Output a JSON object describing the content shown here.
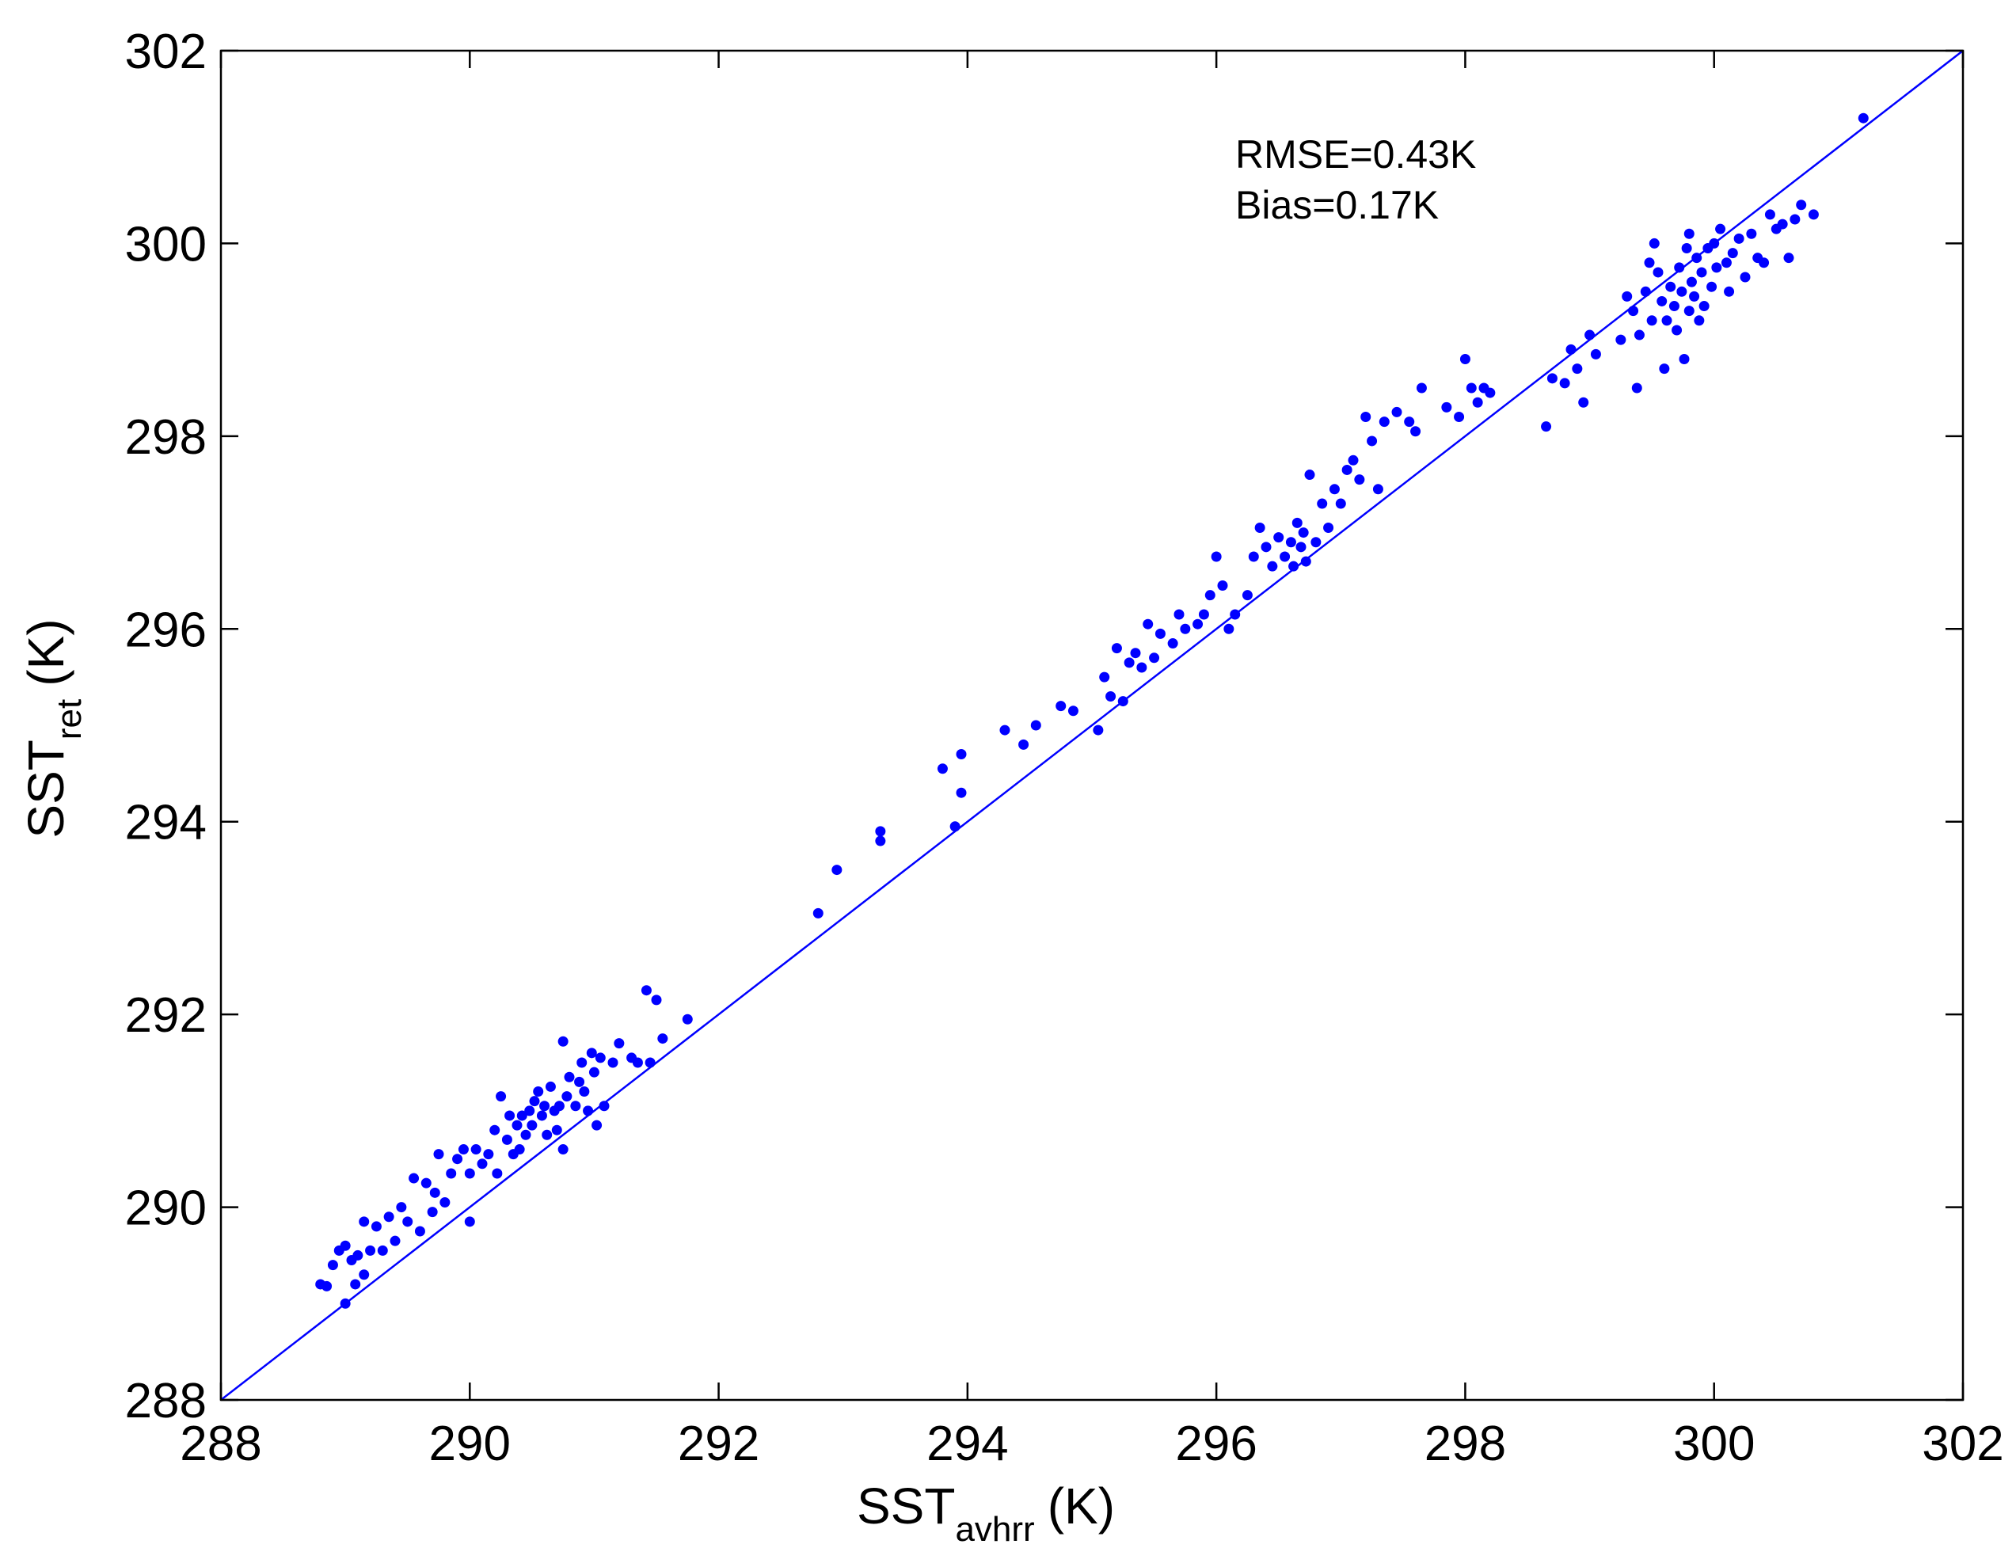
{
  "chart_data": {
    "type": "scatter",
    "title": "",
    "xlabel": {
      "main": "SST",
      "sub": "avhrr",
      "unit": "(K)"
    },
    "ylabel": {
      "main": "SST",
      "sub": "ret",
      "unit": "(K)"
    },
    "xlim": [
      288,
      302
    ],
    "ylim": [
      288,
      302
    ],
    "xticks": [
      288,
      290,
      292,
      294,
      296,
      298,
      300,
      302
    ],
    "yticks": [
      288,
      290,
      292,
      294,
      296,
      298,
      300,
      302
    ],
    "grid": false,
    "legend": "none",
    "point_color": "#0000ff",
    "line_color": "#0000ff",
    "reference_line": {
      "x": [
        288,
        302
      ],
      "y": [
        288,
        302
      ]
    },
    "annotations": [
      "RMSE=0.43K",
      "Bias=0.17K"
    ],
    "series": [
      {
        "points": [
          [
            288.8,
            289.2
          ],
          [
            288.85,
            289.18
          ],
          [
            288.9,
            289.4
          ],
          [
            288.95,
            289.55
          ],
          [
            289.0,
            289.6
          ],
          [
            289.05,
            289.45
          ],
          [
            289.0,
            289.0
          ],
          [
            289.08,
            289.2
          ],
          [
            289.1,
            289.5
          ],
          [
            289.15,
            289.85
          ],
          [
            289.15,
            289.3
          ],
          [
            289.2,
            289.55
          ],
          [
            289.25,
            289.8
          ],
          [
            289.3,
            289.55
          ],
          [
            289.35,
            289.9
          ],
          [
            289.4,
            289.65
          ],
          [
            289.45,
            290.0
          ],
          [
            289.5,
            289.85
          ],
          [
            289.55,
            290.3
          ],
          [
            289.6,
            289.75
          ],
          [
            289.65,
            290.25
          ],
          [
            289.7,
            289.95
          ],
          [
            289.72,
            290.15
          ],
          [
            289.75,
            290.55
          ],
          [
            289.8,
            290.05
          ],
          [
            289.85,
            290.35
          ],
          [
            289.9,
            290.5
          ],
          [
            289.95,
            290.6
          ],
          [
            290.0,
            290.35
          ],
          [
            290.0,
            289.85
          ],
          [
            290.05,
            290.6
          ],
          [
            290.1,
            290.45
          ],
          [
            290.15,
            290.55
          ],
          [
            290.2,
            290.8
          ],
          [
            290.22,
            290.35
          ],
          [
            290.25,
            291.15
          ],
          [
            290.3,
            290.7
          ],
          [
            290.32,
            290.95
          ],
          [
            290.35,
            290.55
          ],
          [
            290.38,
            290.85
          ],
          [
            290.4,
            290.6
          ],
          [
            290.42,
            290.95
          ],
          [
            290.45,
            290.75
          ],
          [
            290.48,
            291.0
          ],
          [
            290.5,
            290.85
          ],
          [
            290.52,
            291.1
          ],
          [
            290.55,
            291.2
          ],
          [
            290.58,
            290.95
          ],
          [
            290.6,
            291.05
          ],
          [
            290.62,
            290.75
          ],
          [
            290.65,
            291.25
          ],
          [
            290.68,
            291.0
          ],
          [
            290.7,
            290.8
          ],
          [
            290.72,
            291.05
          ],
          [
            290.75,
            290.6
          ],
          [
            290.78,
            291.15
          ],
          [
            290.8,
            291.35
          ],
          [
            290.85,
            291.05
          ],
          [
            290.88,
            291.3
          ],
          [
            290.9,
            291.5
          ],
          [
            290.92,
            291.2
          ],
          [
            290.95,
            291.0
          ],
          [
            290.98,
            291.6
          ],
          [
            291.0,
            291.4
          ],
          [
            291.02,
            290.85
          ],
          [
            291.05,
            291.55
          ],
          [
            291.08,
            291.05
          ],
          [
            290.75,
            291.72
          ],
          [
            291.15,
            291.5
          ],
          [
            291.2,
            291.7
          ],
          [
            291.3,
            291.55
          ],
          [
            291.35,
            291.5
          ],
          [
            291.42,
            292.25
          ],
          [
            291.45,
            291.5
          ],
          [
            291.5,
            292.15
          ],
          [
            291.55,
            291.75
          ],
          [
            291.75,
            291.95
          ],
          [
            292.8,
            293.05
          ],
          [
            292.95,
            293.5
          ],
          [
            293.3,
            293.9
          ],
          [
            293.3,
            293.8
          ],
          [
            293.8,
            294.55
          ],
          [
            293.9,
            293.95
          ],
          [
            293.95,
            294.3
          ],
          [
            293.95,
            294.7
          ],
          [
            294.3,
            294.95
          ],
          [
            294.45,
            294.8
          ],
          [
            294.55,
            295.0
          ],
          [
            294.75,
            295.2
          ],
          [
            294.85,
            295.15
          ],
          [
            295.05,
            294.95
          ],
          [
            295.1,
            295.5
          ],
          [
            295.15,
            295.3
          ],
          [
            295.2,
            295.8
          ],
          [
            295.25,
            295.25
          ],
          [
            295.3,
            295.65
          ],
          [
            295.35,
            295.75
          ],
          [
            295.4,
            295.6
          ],
          [
            295.45,
            296.05
          ],
          [
            295.5,
            295.7
          ],
          [
            295.55,
            295.95
          ],
          [
            295.65,
            295.85
          ],
          [
            295.7,
            296.15
          ],
          [
            295.75,
            296.0
          ],
          [
            295.85,
            296.05
          ],
          [
            295.9,
            296.15
          ],
          [
            295.95,
            296.35
          ],
          [
            296.0,
            296.75
          ],
          [
            296.05,
            296.45
          ],
          [
            296.1,
            296.0
          ],
          [
            296.15,
            296.15
          ],
          [
            296.25,
            296.35
          ],
          [
            296.3,
            296.75
          ],
          [
            296.35,
            297.05
          ],
          [
            296.4,
            296.85
          ],
          [
            296.45,
            296.65
          ],
          [
            296.5,
            296.95
          ],
          [
            296.55,
            296.75
          ],
          [
            296.6,
            296.9
          ],
          [
            296.62,
            296.65
          ],
          [
            296.65,
            297.1
          ],
          [
            296.68,
            296.85
          ],
          [
            296.7,
            297.0
          ],
          [
            296.72,
            296.7
          ],
          [
            296.75,
            297.6
          ],
          [
            296.8,
            296.9
          ],
          [
            296.85,
            297.3
          ],
          [
            296.9,
            297.05
          ],
          [
            296.95,
            297.45
          ],
          [
            297.0,
            297.3
          ],
          [
            297.05,
            297.65
          ],
          [
            297.1,
            297.75
          ],
          [
            297.15,
            297.55
          ],
          [
            297.2,
            298.2
          ],
          [
            297.25,
            297.95
          ],
          [
            297.3,
            297.45
          ],
          [
            297.35,
            298.15
          ],
          [
            297.45,
            298.25
          ],
          [
            297.55,
            298.15
          ],
          [
            297.6,
            298.05
          ],
          [
            297.65,
            298.5
          ],
          [
            297.85,
            298.3
          ],
          [
            297.95,
            298.2
          ],
          [
            298.0,
            298.8
          ],
          [
            298.05,
            298.5
          ],
          [
            298.1,
            298.35
          ],
          [
            298.15,
            298.5
          ],
          [
            298.2,
            298.45
          ],
          [
            298.65,
            298.1
          ],
          [
            298.7,
            298.6
          ],
          [
            298.8,
            298.55
          ],
          [
            298.85,
            298.9
          ],
          [
            298.9,
            298.7
          ],
          [
            298.95,
            298.35
          ],
          [
            299.0,
            299.05
          ],
          [
            299.05,
            298.85
          ],
          [
            299.25,
            299.0
          ],
          [
            299.3,
            299.45
          ],
          [
            299.35,
            299.3
          ],
          [
            299.38,
            298.5
          ],
          [
            299.4,
            299.05
          ],
          [
            299.45,
            299.5
          ],
          [
            299.48,
            299.8
          ],
          [
            299.5,
            299.2
          ],
          [
            299.52,
            300.0
          ],
          [
            299.55,
            299.7
          ],
          [
            299.58,
            299.4
          ],
          [
            299.6,
            298.7
          ],
          [
            299.62,
            299.2
          ],
          [
            299.65,
            299.55
          ],
          [
            299.68,
            299.35
          ],
          [
            299.7,
            299.1
          ],
          [
            299.72,
            299.75
          ],
          [
            299.74,
            299.5
          ],
          [
            299.76,
            298.8
          ],
          [
            299.78,
            299.95
          ],
          [
            299.8,
            300.1
          ],
          [
            299.8,
            299.3
          ],
          [
            299.82,
            299.6
          ],
          [
            299.84,
            299.45
          ],
          [
            299.86,
            299.85
          ],
          [
            299.88,
            299.2
          ],
          [
            299.9,
            299.7
          ],
          [
            299.92,
            299.35
          ],
          [
            299.95,
            299.95
          ],
          [
            299.98,
            299.55
          ],
          [
            300.0,
            300.0
          ],
          [
            300.02,
            299.75
          ],
          [
            300.05,
            300.15
          ],
          [
            300.1,
            299.8
          ],
          [
            300.12,
            299.5
          ],
          [
            300.15,
            299.9
          ],
          [
            300.2,
            300.05
          ],
          [
            300.25,
            299.65
          ],
          [
            300.3,
            300.1
          ],
          [
            300.35,
            299.85
          ],
          [
            300.4,
            299.8
          ],
          [
            300.45,
            300.3
          ],
          [
            300.5,
            300.15
          ],
          [
            300.55,
            300.2
          ],
          [
            300.6,
            299.85
          ],
          [
            300.65,
            300.25
          ],
          [
            300.7,
            300.4
          ],
          [
            300.8,
            300.3
          ],
          [
            301.2,
            301.3
          ]
        ]
      }
    ]
  }
}
